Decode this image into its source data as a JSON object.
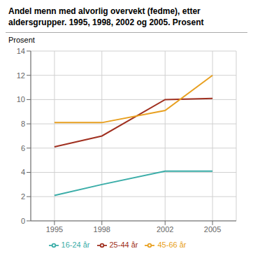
{
  "chart_data": {
    "type": "line",
    "title": "Andel menn med alvorlig overvekt (fedme), etter\naldersgrupper. 1995, 1998, 2002 og 2005. Prosent",
    "ylabel": "Prosent",
    "x": [
      1995,
      1998,
      2002,
      2005
    ],
    "series": [
      {
        "name": "16-24 år",
        "color": "#3aada8",
        "values": [
          2.1,
          3.0,
          4.1,
          4.1
        ]
      },
      {
        "name": "25-44 år",
        "color": "#a03020",
        "values": [
          6.1,
          7.0,
          10.0,
          10.1
        ]
      },
      {
        "name": "45-66 år",
        "color": "#e8a020",
        "values": [
          8.1,
          8.1,
          9.1,
          12.0
        ]
      }
    ],
    "xlim": [
      1993.5,
      2006.5
    ],
    "xticks": [
      1995,
      1998,
      2002,
      2005
    ],
    "ylim": [
      0,
      14
    ],
    "yticks": [
      0,
      2,
      4,
      6,
      8,
      10,
      12,
      14
    ],
    "grid": true
  }
}
